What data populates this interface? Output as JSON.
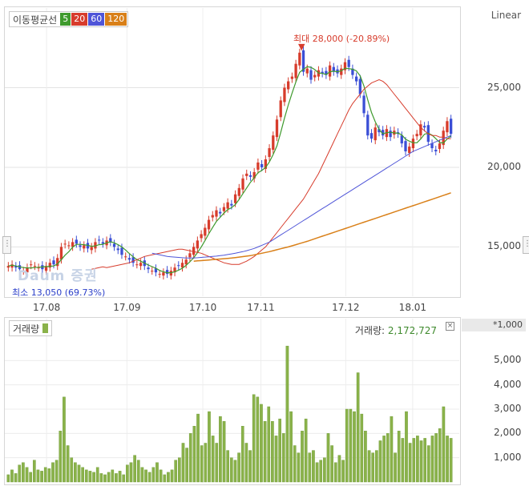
{
  "legend": {
    "title": "이동평균선",
    "ma": [
      "5",
      "20",
      "60",
      "120"
    ]
  },
  "scale_mode": "Linear",
  "extremes": {
    "max_label": "최대 28,000 (-20.89%)",
    "min_label": "최소 13,050 (69.73%)"
  },
  "watermark": "Daum 증권",
  "volume_panel": {
    "legend": "거래량",
    "readout_label": "거래량:",
    "readout_value": "2,172,727",
    "unit": "*1,000"
  },
  "colors": {
    "up": "#d73c2c",
    "down": "#3b4fd6",
    "ma5": "#3f9a2d",
    "ma20": "#d73c2c",
    "ma60": "#4f55d8",
    "ma120": "#d98019",
    "volume": "#8ab24a"
  },
  "chart_data": [
    {
      "type": "candlestick",
      "x_ticks": [
        "17.08",
        "17.09",
        "17.10",
        "17.11",
        "17.12",
        "18.01"
      ],
      "y_ticks": [
        15000,
        20000,
        25000
      ],
      "ylim": [
        12000,
        29000
      ],
      "closes": [
        13800,
        13900,
        13700,
        13600,
        13500,
        13700,
        13900,
        13800,
        13700,
        13600,
        13800,
        14000,
        13900,
        14300,
        15000,
        15200,
        15100,
        15300,
        15200,
        15000,
        15100,
        14900,
        15000,
        15300,
        15400,
        15200,
        15400,
        15300,
        15000,
        14800,
        14500,
        14400,
        14200,
        14000,
        13900,
        14000,
        13800,
        13600,
        13500,
        13400,
        13300,
        13400,
        13300,
        13500,
        13700,
        13800,
        14000,
        14200,
        14600,
        15000,
        15400,
        15800,
        16200,
        16700,
        17000,
        17300,
        17100,
        17500,
        17800,
        17600,
        18300,
        18700,
        19300,
        19600,
        19400,
        19700,
        20300,
        20000,
        20500,
        21200,
        22000,
        23000,
        24200,
        25000,
        25400,
        25700,
        26500,
        27200,
        26000,
        26200,
        25500,
        25800,
        26100,
        25900,
        25800,
        26400,
        26000,
        25900,
        26200,
        26600,
        26300,
        25800,
        25400,
        24600,
        23400,
        22000,
        21800,
        22500,
        22200,
        22000,
        22400,
        21900,
        22300,
        22100,
        21500,
        21000,
        21300,
        21800,
        22100,
        22700,
        22500,
        21600,
        21200,
        21000,
        21500,
        22300,
        22900,
        22100
      ],
      "ma20": [
        13600,
        13650,
        13700,
        13750,
        13700,
        13750,
        13800,
        13850,
        13900,
        13950,
        14000,
        14100,
        14200,
        14300,
        14400,
        14450,
        14500,
        14550,
        14600,
        14650,
        14700,
        14750,
        14800,
        14850,
        14850,
        14800,
        14750,
        14700,
        14650,
        14600,
        14500,
        14400,
        14300,
        14200,
        14100,
        14000,
        13950,
        13900,
        13900,
        13900,
        14000,
        14100,
        14250,
        14400,
        14600,
        14800,
        15000,
        15300,
        15600,
        15900,
        16200,
        16500,
        16800,
        17100,
        17400,
        17700,
        18000,
        18400,
        18800,
        19200,
        19600,
        20100,
        20600,
        21100,
        21600,
        22100,
        22600,
        23100,
        23600,
        24000,
        24300,
        24600,
        24900,
        25100,
        25300,
        25400,
        25500,
        25400,
        25200,
        24900,
        24600,
        24300,
        24000,
        23700,
        23400,
        23100,
        22800,
        22500,
        22300,
        22100,
        22000,
        22000,
        21900,
        21900,
        21800,
        21800
      ],
      "ma60": [
        14600,
        14550,
        14500,
        14450,
        14400,
        14380,
        14360,
        14340,
        14320,
        14300,
        14300,
        14310,
        14320,
        14340,
        14360,
        14380,
        14400,
        14420,
        14450,
        14480,
        14520,
        14560,
        14600,
        14650,
        14700,
        14760,
        14830,
        14900,
        15000,
        15100,
        15200,
        15300,
        15450,
        15600,
        15750,
        15900,
        16050,
        16200,
        16350,
        16500,
        16650,
        16800,
        16950,
        17100,
        17250,
        17400,
        17550,
        17700,
        17850,
        18000,
        18150,
        18300,
        18450,
        18600,
        18750,
        18900,
        19050,
        19200,
        19350,
        19500,
        19650,
        19800,
        19950,
        20100,
        20250,
        20400,
        20550,
        20700,
        20850,
        21000,
        21100,
        21200,
        21300,
        21400,
        21500,
        21600,
        21700,
        21800,
        21900,
        22000
      ],
      "ma120": [
        14100,
        14120,
        14140,
        14160,
        14180,
        14200,
        14220,
        14240,
        14260,
        14280,
        14300,
        14330,
        14360,
        14390,
        14420,
        14450,
        14500,
        14550,
        14600,
        14650,
        14700,
        14760,
        14820,
        14880,
        14940,
        15000,
        15070,
        15140,
        15210,
        15280,
        15350,
        15430,
        15510,
        15590,
        15670,
        15750,
        15830,
        15910,
        15990,
        16070,
        16150,
        16230,
        16310,
        16390,
        16470,
        16550,
        16630,
        16710,
        16790,
        16870,
        16950,
        17030,
        17110,
        17190,
        17270,
        17350,
        17430,
        17510,
        17590,
        17670,
        17750,
        17830,
        17910,
        17990,
        18070,
        18150,
        18230,
        18310,
        18400
      ]
    },
    {
      "type": "bar",
      "name": "거래량",
      "y_ticks": [
        1000,
        2000,
        3000,
        4000,
        5000
      ],
      "ylim": [
        0,
        6000
      ],
      "values": [
        300,
        500,
        350,
        700,
        800,
        600,
        400,
        900,
        500,
        450,
        600,
        550,
        800,
        900,
        2100,
        3500,
        1500,
        1000,
        800,
        700,
        600,
        500,
        450,
        400,
        600,
        350,
        300,
        400,
        500,
        350,
        450,
        300,
        700,
        800,
        1100,
        900,
        600,
        500,
        400,
        600,
        800,
        500,
        300,
        400,
        500,
        900,
        1000,
        1600,
        1400,
        2000,
        2300,
        2800,
        1500,
        1600,
        2900,
        1900,
        1600,
        2700,
        2500,
        1300,
        1000,
        900,
        1200,
        2300,
        1600,
        1300,
        3600,
        3500,
        3200,
        2500,
        3100,
        2500,
        1900,
        2600,
        2000,
        5600,
        2900,
        1500,
        1200,
        2100,
        2600,
        1200,
        1300,
        800,
        900,
        1000,
        2000,
        1500,
        800,
        1100,
        900,
        3000,
        3000,
        2900,
        4500,
        2800,
        2100,
        1300,
        1200,
        1300,
        1700,
        1900,
        2000,
        2700,
        1200,
        2100,
        1800,
        2900,
        1600,
        1800,
        1900,
        1700,
        1800,
        1500,
        1900,
        2000,
        2200,
        3100,
        1900,
        1800
      ]
    }
  ]
}
